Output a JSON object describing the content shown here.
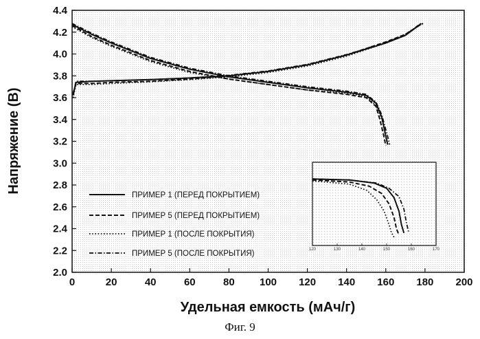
{
  "caption": "Фиг. 9",
  "chart_data": {
    "type": "line",
    "title": "",
    "xlabel": "Удельная емкость (мАч/г)",
    "ylabel": "Напряжение (В)",
    "xlim": [
      0,
      200
    ],
    "ylim": [
      2.0,
      4.4
    ],
    "xticks": [
      0,
      20,
      40,
      60,
      80,
      100,
      120,
      140,
      160,
      180,
      200
    ],
    "yticks": [
      "2.0",
      "2.2",
      "2.4",
      "2.6",
      "2.8",
      "3.0",
      "3.2",
      "3.4",
      "3.6",
      "3.8",
      "4.0",
      "4.2",
      "4.4"
    ],
    "grid": false,
    "legend_position": "bottom-left",
    "series": [
      {
        "name": "ПРИМЕР 1 (ПЕРЕД ПОКРЫТИЕМ)",
        "style": "solid",
        "charge": [
          [
            0.5,
            3.62
          ],
          [
            2,
            3.74
          ],
          [
            10,
            3.75
          ],
          [
            20,
            3.755
          ],
          [
            40,
            3.765
          ],
          [
            60,
            3.78
          ],
          [
            80,
            3.8
          ],
          [
            100,
            3.84
          ],
          [
            120,
            3.9
          ],
          [
            140,
            3.99
          ],
          [
            160,
            4.1
          ],
          [
            170,
            4.17
          ],
          [
            176,
            4.25
          ],
          [
            178,
            4.28
          ]
        ],
        "discharge": [
          [
            0,
            4.27
          ],
          [
            10,
            4.18
          ],
          [
            20,
            4.1
          ],
          [
            40,
            3.96
          ],
          [
            60,
            3.86
          ],
          [
            80,
            3.79
          ],
          [
            100,
            3.74
          ],
          [
            120,
            3.69
          ],
          [
            140,
            3.65
          ],
          [
            150,
            3.62
          ],
          [
            155,
            3.55
          ],
          [
            158,
            3.42
          ],
          [
            160,
            3.25
          ],
          [
            161,
            3.17
          ]
        ]
      },
      {
        "name": "ПРИМЕР 5 (ПЕРЕД ПОКРЫТИЕМ)",
        "style": "dashed",
        "charge": [
          [
            0.5,
            3.64
          ],
          [
            2,
            3.73
          ],
          [
            10,
            3.73
          ],
          [
            20,
            3.74
          ],
          [
            40,
            3.75
          ],
          [
            60,
            3.77
          ],
          [
            80,
            3.8
          ],
          [
            100,
            3.84
          ],
          [
            120,
            3.9
          ],
          [
            140,
            3.99
          ],
          [
            160,
            4.11
          ],
          [
            170,
            4.18
          ],
          [
            177,
            4.26
          ],
          [
            179,
            4.28
          ]
        ],
        "discharge": [
          [
            0,
            4.26
          ],
          [
            10,
            4.16
          ],
          [
            20,
            4.08
          ],
          [
            40,
            3.94
          ],
          [
            60,
            3.84
          ],
          [
            80,
            3.77
          ],
          [
            100,
            3.72
          ],
          [
            120,
            3.67
          ],
          [
            140,
            3.63
          ],
          [
            150,
            3.6
          ],
          [
            155,
            3.52
          ],
          [
            157,
            3.4
          ],
          [
            159,
            3.25
          ],
          [
            160,
            3.16
          ]
        ]
      },
      {
        "name": "ПРИМЕР 1 (ПОСЛЕ ПОКРЫТИЯ)",
        "style": "dotted",
        "charge": [
          [
            0.5,
            3.6
          ],
          [
            2,
            3.72
          ],
          [
            10,
            3.72
          ],
          [
            20,
            3.73
          ],
          [
            40,
            3.745
          ],
          [
            60,
            3.765
          ],
          [
            80,
            3.79
          ],
          [
            100,
            3.83
          ],
          [
            120,
            3.89
          ],
          [
            140,
            3.98
          ],
          [
            160,
            4.1
          ],
          [
            170,
            4.18
          ],
          [
            177,
            4.26
          ],
          [
            179,
            4.28
          ]
        ],
        "discharge": [
          [
            0,
            4.25
          ],
          [
            10,
            4.15
          ],
          [
            20,
            4.07
          ],
          [
            40,
            3.93
          ],
          [
            60,
            3.83
          ],
          [
            80,
            3.77
          ],
          [
            100,
            3.72
          ],
          [
            120,
            3.67
          ],
          [
            140,
            3.64
          ],
          [
            150,
            3.61
          ],
          [
            155,
            3.53
          ],
          [
            158,
            3.4
          ],
          [
            160,
            3.24
          ],
          [
            161,
            3.16
          ]
        ]
      },
      {
        "name": "ПРИМЕР 5 (ПОСЛЕ ПОКРЫТИЯ)",
        "style": "dashdot",
        "charge": [
          [
            0.5,
            3.63
          ],
          [
            2,
            3.75
          ],
          [
            10,
            3.75
          ],
          [
            20,
            3.755
          ],
          [
            40,
            3.765
          ],
          [
            60,
            3.78
          ],
          [
            80,
            3.805
          ],
          [
            100,
            3.845
          ],
          [
            120,
            3.905
          ],
          [
            140,
            3.995
          ],
          [
            160,
            4.105
          ],
          [
            170,
            4.175
          ],
          [
            176,
            4.255
          ],
          [
            178,
            4.28
          ]
        ],
        "discharge": [
          [
            0,
            4.28
          ],
          [
            10,
            4.19
          ],
          [
            20,
            4.11
          ],
          [
            40,
            3.97
          ],
          [
            60,
            3.87
          ],
          [
            80,
            3.8
          ],
          [
            100,
            3.75
          ],
          [
            120,
            3.7
          ],
          [
            140,
            3.66
          ],
          [
            150,
            3.63
          ],
          [
            155,
            3.56
          ],
          [
            158,
            3.44
          ],
          [
            161,
            3.24
          ],
          [
            162,
            3.17
          ]
        ]
      }
    ],
    "inset": {
      "xticks": [
        "120",
        "130",
        "140",
        "150",
        "160",
        "170"
      ],
      "xlim": [
        120,
        170
      ],
      "ylim": [
        3.0,
        3.8
      ],
      "series": [
        {
          "style": "solid",
          "points": [
            [
              120,
              3.64
            ],
            [
              135,
              3.63
            ],
            [
              145,
              3.6
            ],
            [
              150,
              3.55
            ],
            [
              153,
              3.46
            ],
            [
              155,
              3.33
            ],
            [
              156,
              3.2
            ],
            [
              157,
              3.12
            ]
          ]
        },
        {
          "style": "dashed",
          "points": [
            [
              120,
              3.63
            ],
            [
              135,
              3.61
            ],
            [
              143,
              3.57
            ],
            [
              148,
              3.5
            ],
            [
              151,
              3.4
            ],
            [
              153,
              3.27
            ],
            [
              154,
              3.16
            ],
            [
              155,
              3.1
            ]
          ]
        },
        {
          "style": "dotted",
          "points": [
            [
              120,
              3.62
            ],
            [
              135,
              3.59
            ],
            [
              142,
              3.53
            ],
            [
              146,
              3.44
            ],
            [
              149,
              3.33
            ],
            [
              151,
              3.2
            ],
            [
              152,
              3.12
            ],
            [
              153,
              3.08
            ]
          ]
        },
        {
          "style": "dashdot",
          "points": [
            [
              120,
              3.64
            ],
            [
              135,
              3.63
            ],
            [
              146,
              3.6
            ],
            [
              151,
              3.55
            ],
            [
              155,
              3.47
            ],
            [
              157,
              3.35
            ],
            [
              158,
              3.22
            ],
            [
              159,
              3.12
            ]
          ]
        }
      ]
    }
  }
}
